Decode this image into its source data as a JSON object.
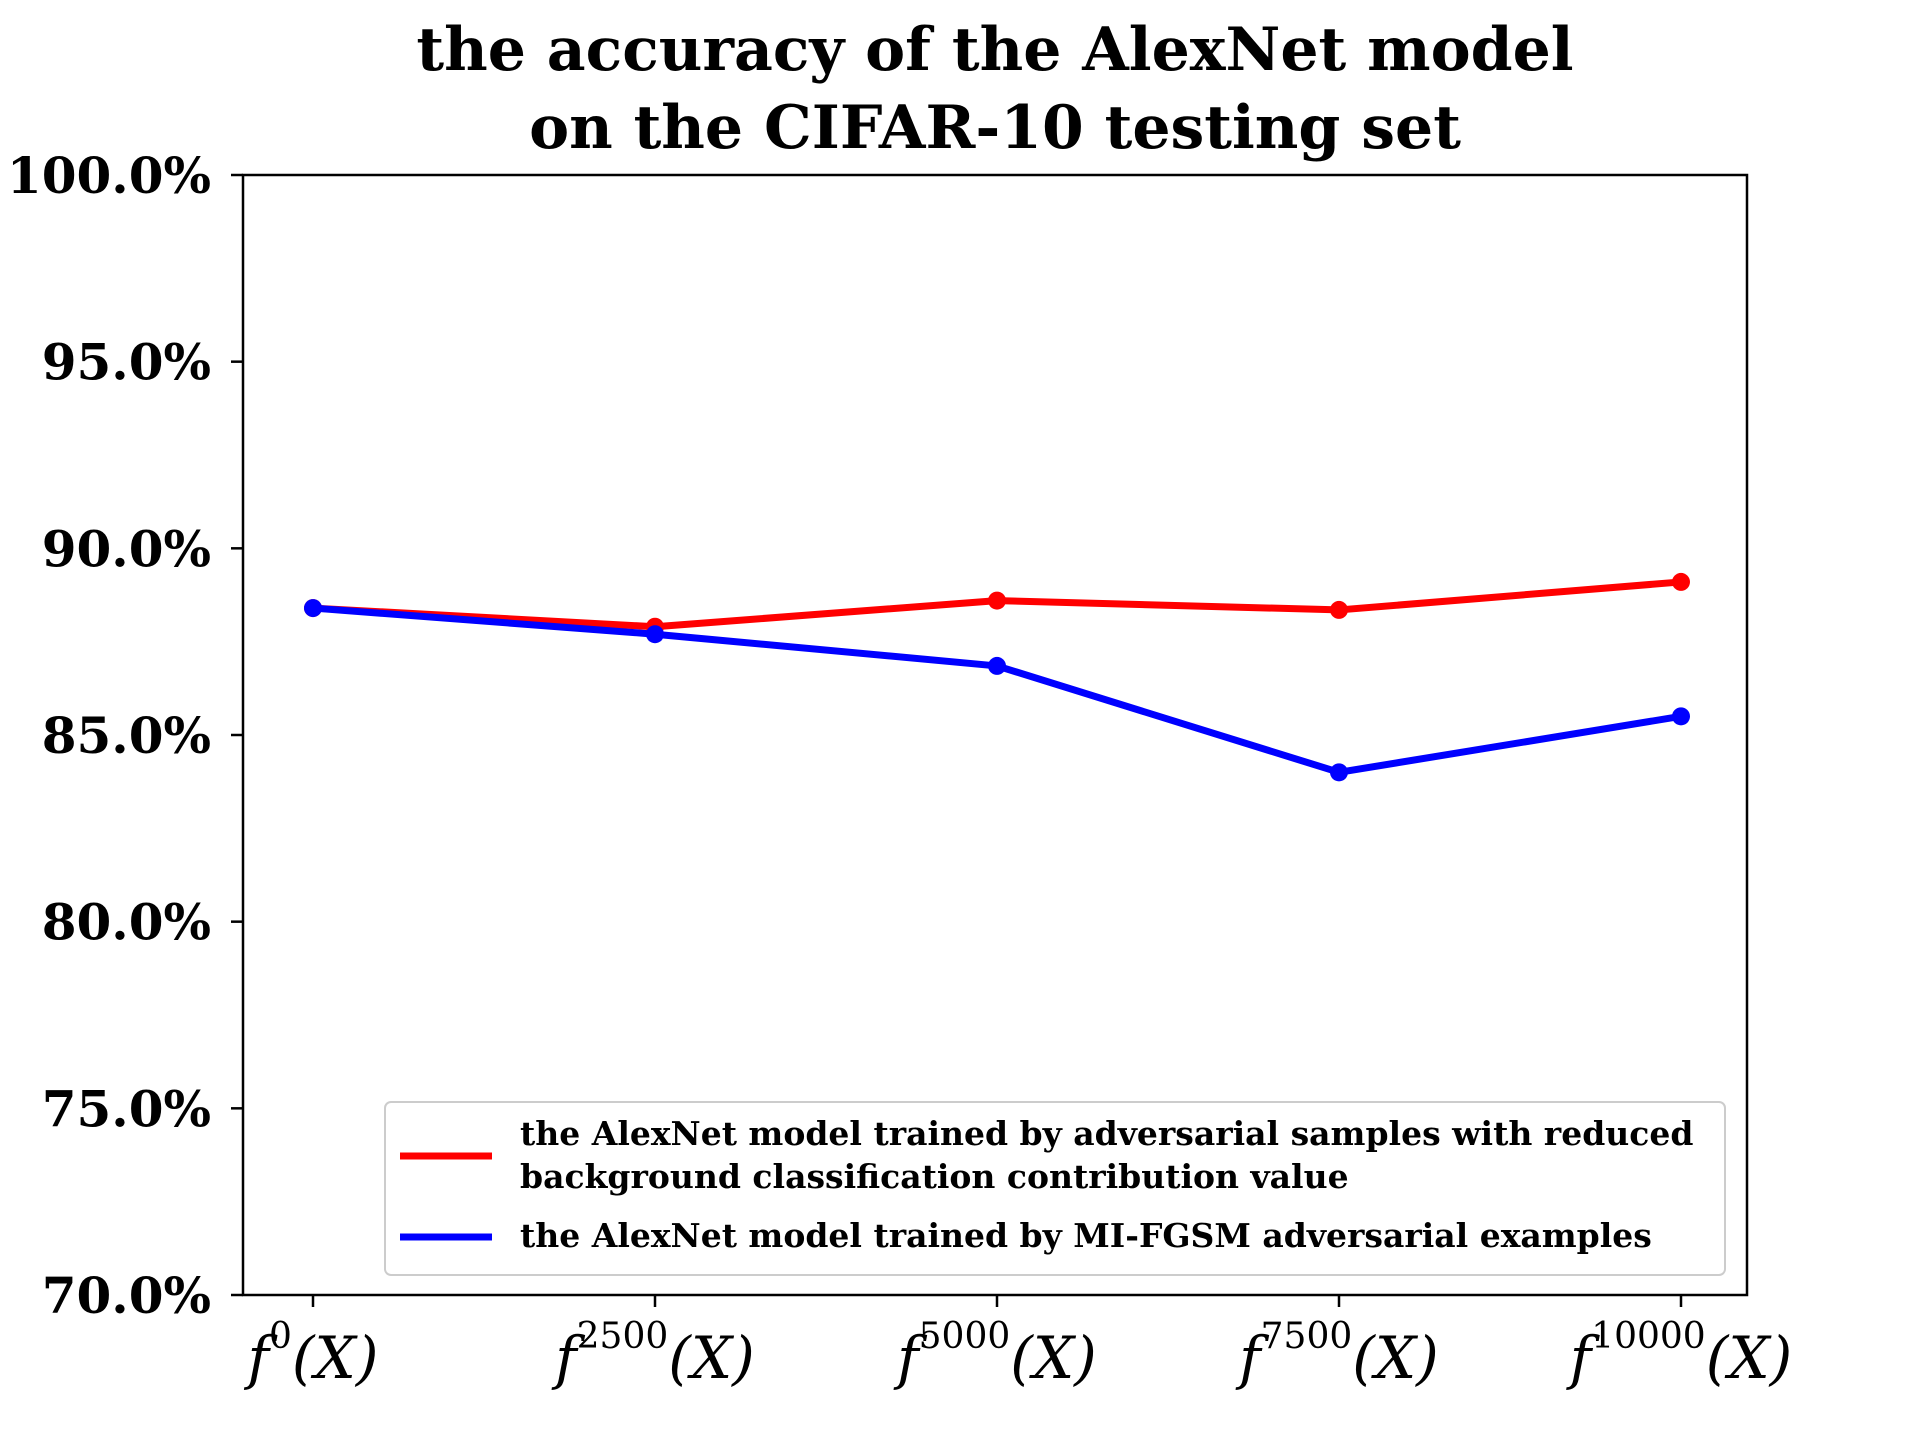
{
  "chart_data": {
    "type": "line",
    "title": [
      "the accuracy of the AlexNet model",
      "on the CIFAR-10 testing set"
    ],
    "xlabel": "",
    "ylabel": "",
    "categories": [
      {
        "base": "f",
        "sup": "0",
        "arg": "(X)"
      },
      {
        "base": "f",
        "sup": "2500",
        "arg": "(X)"
      },
      {
        "base": "f",
        "sup": "5000",
        "arg": "(X)"
      },
      {
        "base": "f",
        "sup": "7500",
        "arg": "(X)"
      },
      {
        "base": "f",
        "sup": "10000",
        "arg": "(X)"
      }
    ],
    "ylim": [
      70,
      100
    ],
    "yticks": [
      70,
      75,
      80,
      85,
      90,
      95,
      100
    ],
    "ytick_labels": [
      "70.0%",
      "75.0%",
      "80.0%",
      "85.0%",
      "90.0%",
      "95.0%",
      "100.0%"
    ],
    "grid": false,
    "legend_placement": "lower-right",
    "series": [
      {
        "name": [
          "the AlexNet model trained by adversarial samples with reduced",
          "background classification contribution value"
        ],
        "color": "#ff0000",
        "values": [
          88.4,
          87.9,
          88.6,
          88.35,
          89.1
        ]
      },
      {
        "name": [
          "the AlexNet model trained by MI-FGSM adversarial examples"
        ],
        "color": "#0000ff",
        "values": [
          88.4,
          87.7,
          86.85,
          84.0,
          85.5
        ]
      }
    ]
  }
}
